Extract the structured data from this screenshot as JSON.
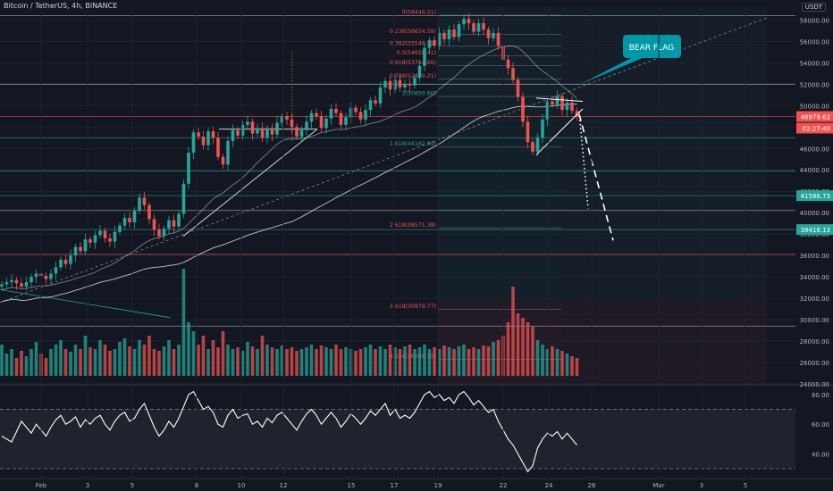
{
  "header": {
    "title": "Bitcoin / TetherUS, 4h, BINANCE",
    "currency": "USDT"
  },
  "colors": {
    "background": "#131722",
    "up": "#26a69a",
    "down": "#ef5350",
    "accent": "#0097a7",
    "sma": "#d1d4dc",
    "rsi": "#ffffff"
  },
  "chart_data": [
    {
      "type": "candlestick",
      "symbol": "BTCUSDT",
      "interval": "4h",
      "x_ticks": [
        "Feb",
        "3",
        "5",
        "8",
        "10",
        "12",
        "15",
        "17",
        "19",
        "22",
        "24",
        "26",
        "Mar",
        "3",
        "5"
      ],
      "y_ticks": [
        24000,
        26000,
        28000,
        30000,
        32000,
        34000,
        36000,
        38000,
        40000,
        42000,
        44000,
        46000,
        48000,
        50000,
        52000,
        54000,
        56000,
        58000
      ],
      "ylim": [
        24000,
        59200
      ],
      "price_labels": {
        "current_price": "48979.62",
        "countdown": "02:27:40",
        "level_a": "41586.73",
        "level_b": "38418.13"
      },
      "fibonacci_levels": [
        {
          "label": "0(58446.21)",
          "value": 58446.21
        },
        {
          "label": "0.236(56654.59)",
          "value": 56654.59
        },
        {
          "label": "0.382(55546.22)",
          "value": 55546.22
        },
        {
          "label": "0.5(54650.41)",
          "value": 54650.41
        },
        {
          "label": "0.618(53754.60)",
          "value": 53754.6
        },
        {
          "label": "0.786(52479.21)",
          "value": 52479.21
        },
        {
          "label": "1(50850.60)",
          "value": 50850.6
        },
        {
          "label": "1.618(46162.99)",
          "value": 46162.99
        },
        {
          "label": "2.618(38571.38)",
          "value": 38571.38
        },
        {
          "label": "3.618(30979.77)",
          "value": 30979.77
        },
        {
          "label": "4.236(26288.55)",
          "value": 26288.55
        }
      ],
      "horizontal_levels": [
        58400,
        52000,
        48979.62,
        47000,
        43900,
        41586.73,
        40200,
        38418.13,
        36100,
        29400
      ],
      "annotations": [
        {
          "text": "BEAR FLAG"
        }
      ],
      "candles_close": [
        33300,
        33500,
        33700,
        33400,
        33100,
        33500,
        34000,
        34300,
        34100,
        33800,
        34300,
        34900,
        35600,
        35200,
        36000,
        36800,
        36400,
        37500,
        37200,
        37900,
        38300,
        37600,
        37300,
        38200,
        38800,
        39500,
        39100,
        40200,
        41400,
        40700,
        39400,
        38400,
        37800,
        38500,
        39300,
        38700,
        39900,
        42700,
        45600,
        47500,
        47100,
        46300,
        47600,
        47000,
        45200,
        44500,
        46700,
        47700,
        47200,
        48200,
        48500,
        47400,
        47900,
        47000,
        47900,
        47300,
        48400,
        49000,
        48700,
        48000,
        47100,
        47700,
        48500,
        49300,
        49000,
        47900,
        48800,
        49700,
        49300,
        48200,
        48900,
        49800,
        49400,
        48700,
        49600,
        50500,
        50200,
        51700,
        52300,
        51500,
        52400,
        51700,
        52000,
        51900,
        52600,
        53700,
        55400,
        56100,
        55600,
        56800,
        56200,
        57100,
        56400,
        57600,
        58100,
        57700,
        56900,
        57700,
        57100,
        56300,
        56800,
        55600,
        54300,
        53500,
        52400,
        50800,
        48500,
        46600,
        45700,
        47000,
        48700,
        50400,
        50100,
        50900,
        49600,
        50300,
        49500,
        48980
      ],
      "volume_relative": [
        0.35,
        0.25,
        0.3,
        0.2,
        0.28,
        0.22,
        0.3,
        0.38,
        0.25,
        0.2,
        0.3,
        0.35,
        0.4,
        0.3,
        0.27,
        0.35,
        0.3,
        0.45,
        0.32,
        0.3,
        0.4,
        0.35,
        0.28,
        0.3,
        0.38,
        0.42,
        0.33,
        0.3,
        0.4,
        0.35,
        0.45,
        0.3,
        0.28,
        0.33,
        0.4,
        0.3,
        0.35,
        1.2,
        0.6,
        0.5,
        0.35,
        0.45,
        0.3,
        0.4,
        0.32,
        0.5,
        0.35,
        0.3,
        0.32,
        0.28,
        0.38,
        0.33,
        0.3,
        0.45,
        0.35,
        0.32,
        0.3,
        0.34,
        0.3,
        0.32,
        0.28,
        0.3,
        0.32,
        0.35,
        0.3,
        0.34,
        0.32,
        0.3,
        0.35,
        0.3,
        0.32,
        0.3,
        0.28,
        0.3,
        0.32,
        0.35,
        0.3,
        0.33,
        0.3,
        0.35,
        0.32,
        0.3,
        0.33,
        0.35,
        0.3,
        0.32,
        0.35,
        0.3,
        0.32,
        0.3,
        0.34,
        0.32,
        0.3,
        0.33,
        0.35,
        0.3,
        0.32,
        0.3,
        0.34,
        0.33,
        0.38,
        0.4,
        0.45,
        0.6,
        1.0,
        0.7,
        0.65,
        0.6,
        0.55,
        0.4,
        0.35,
        0.3,
        0.33,
        0.3,
        0.28,
        0.25,
        0.22,
        0.2
      ]
    },
    {
      "type": "line",
      "name": "RSI",
      "y_ticks": [
        40,
        60,
        80
      ],
      "ylim": [
        24,
        86
      ],
      "bands": [
        70,
        30
      ],
      "values": [
        52,
        50,
        48,
        55,
        62,
        58,
        54,
        60,
        56,
        52,
        58,
        63,
        66,
        60,
        62,
        65,
        58,
        63,
        60,
        64,
        66,
        60,
        56,
        62,
        66,
        68,
        62,
        64,
        70,
        74,
        66,
        58,
        52,
        56,
        62,
        58,
        64,
        72,
        80,
        82,
        76,
        70,
        72,
        68,
        60,
        58,
        66,
        70,
        64,
        66,
        67,
        60,
        62,
        58,
        64,
        61,
        66,
        68,
        64,
        60,
        56,
        62,
        67,
        70,
        66,
        60,
        64,
        68,
        64,
        58,
        62,
        67,
        64,
        60,
        64,
        69,
        66,
        70,
        74,
        66,
        70,
        64,
        66,
        64,
        68,
        74,
        80,
        82,
        78,
        80,
        76,
        78,
        74,
        80,
        82,
        78,
        73,
        76,
        72,
        68,
        70,
        62,
        56,
        50,
        46,
        40,
        34,
        28,
        32,
        44,
        50,
        54,
        52,
        55,
        50,
        54,
        50,
        46
      ]
    }
  ]
}
